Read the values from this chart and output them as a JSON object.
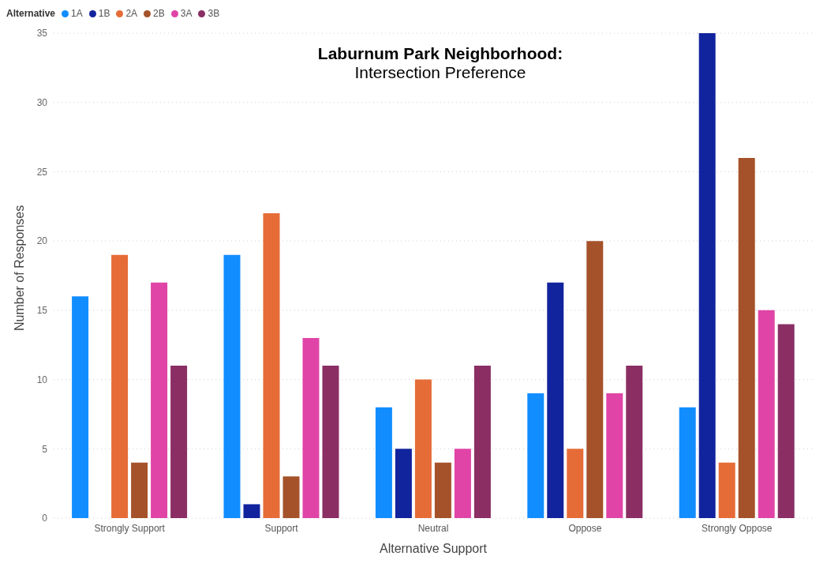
{
  "chart_data": {
    "type": "bar",
    "title": "Laburnum Park Neighborhood:",
    "subtitle": "Intersection Preference",
    "xlabel": "Alternative Support",
    "ylabel": "Number of Responses",
    "legend_title": "Alternative",
    "legend": "top left",
    "grid": "y",
    "line_style": "dotted",
    "categories": [
      "Strongly Support",
      "Support",
      "Neutral",
      "Oppose",
      "Strongly Oppose"
    ],
    "series": [
      {
        "name": "1A",
        "color": "#118dff",
        "values": [
          16,
          19,
          8,
          9,
          8
        ]
      },
      {
        "name": "1B",
        "color": "#12239e",
        "values": [
          null,
          1,
          5,
          17,
          35
        ]
      },
      {
        "name": "2A",
        "color": "#e66c37",
        "values": [
          19,
          22,
          10,
          5,
          4
        ]
      },
      {
        "name": "2B",
        "color": "#a5522a",
        "values": [
          4,
          3,
          4,
          20,
          26
        ]
      },
      {
        "name": "3A",
        "color": "#e044a7",
        "values": [
          17,
          13,
          5,
          9,
          15
        ]
      },
      {
        "name": "3B",
        "color": "#8a2e63",
        "values": [
          11,
          11,
          11,
          11,
          14
        ]
      }
    ],
    "ylim": [
      0,
      35
    ],
    "yticks": [
      0,
      5,
      10,
      15,
      20,
      25,
      30,
      35
    ]
  }
}
